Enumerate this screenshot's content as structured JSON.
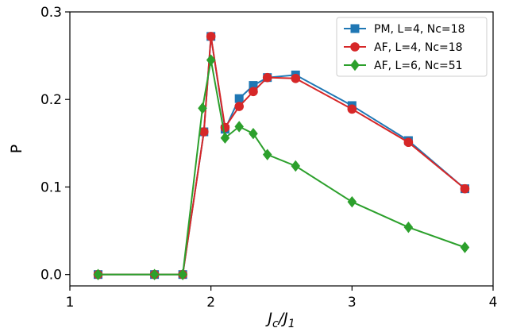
{
  "chart_data": {
    "type": "line",
    "xlabel": "J_c/J_1",
    "ylabel": "P",
    "xlim": [
      1,
      4
    ],
    "ylim": [
      -0.013,
      0.3
    ],
    "xticks": [
      1,
      2,
      3,
      4
    ],
    "xtick_labels": [
      "1",
      "2",
      "3",
      "4"
    ],
    "yticks": [
      0.0,
      0.1,
      0.2,
      0.3
    ],
    "ytick_labels": [
      "0.0",
      "0.1",
      "0.2",
      "0.3"
    ],
    "grid": false,
    "legend_position": "top-right",
    "series": [
      {
        "name": "PM, L=4, Nc=18",
        "color": "#1f77b4",
        "marker": "square",
        "x": [
          1.2,
          1.6,
          1.8,
          1.95,
          2.0,
          2.1,
          2.2,
          2.3,
          2.4,
          2.6,
          3.0,
          3.4,
          3.8
        ],
        "y": [
          0.0,
          0.0,
          0.0,
          0.163,
          0.272,
          0.166,
          0.201,
          0.216,
          0.225,
          0.228,
          0.193,
          0.153,
          0.098
        ]
      },
      {
        "name": "AF, L=4, Nc=18",
        "color": "#d62728",
        "marker": "circle",
        "x": [
          1.2,
          1.6,
          1.8,
          1.95,
          2.0,
          2.1,
          2.2,
          2.3,
          2.4,
          2.6,
          3.0,
          3.4,
          3.8
        ],
        "y": [
          0.0,
          0.0,
          0.0,
          0.163,
          0.272,
          0.168,
          0.192,
          0.209,
          0.225,
          0.224,
          0.189,
          0.151,
          0.098
        ]
      },
      {
        "name": "AF, L=6, Nc=51",
        "color": "#2ca02c",
        "marker": "diamond",
        "x": [
          1.2,
          1.6,
          1.8,
          1.94,
          2.0,
          2.1,
          2.2,
          2.3,
          2.4,
          2.6,
          3.0,
          3.4,
          3.8
        ],
        "y": [
          0.0,
          0.0,
          0.0,
          0.19,
          0.245,
          0.156,
          0.169,
          0.161,
          0.137,
          0.124,
          0.083,
          0.054,
          0.031
        ]
      }
    ]
  }
}
